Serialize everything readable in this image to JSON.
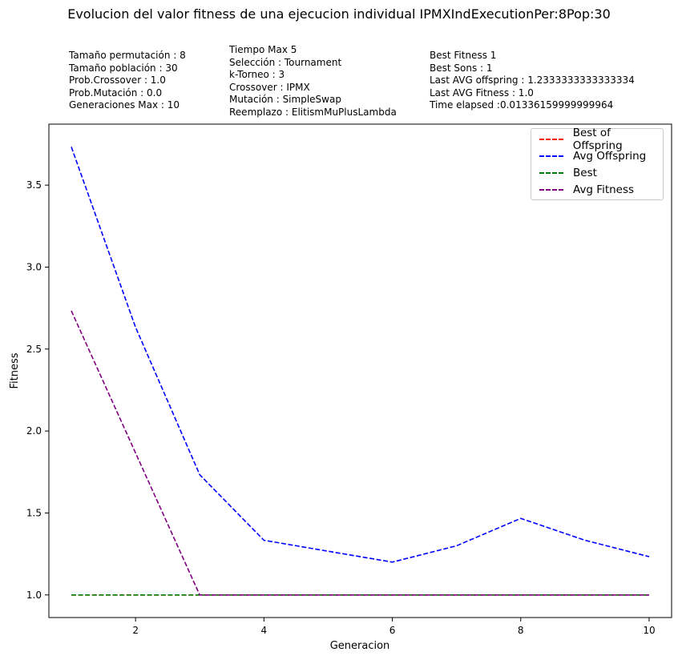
{
  "chart_data": {
    "type": "line",
    "title": "Evolucion del valor fitness de una ejecucion individual IPMXIndExecutionPer:8Pop:30",
    "xlabel": "Generacion",
    "ylabel": "Fitness",
    "xlim": [
      0.65,
      10.35
    ],
    "ylim": [
      0.862,
      3.872
    ],
    "xticks": [
      2,
      4,
      6,
      8,
      10
    ],
    "yticks": [
      1.0,
      1.5,
      2.0,
      2.5,
      3.0,
      3.5
    ],
    "xtick_labels": [
      "2",
      "4",
      "6",
      "8",
      "10"
    ],
    "ytick_labels": [
      "1.0",
      "1.5",
      "2.0",
      "2.5",
      "3.0",
      "3.5"
    ],
    "legend_position": "top-right",
    "grid": false,
    "x": [
      1,
      2,
      3,
      4,
      5,
      6,
      7,
      8,
      9,
      10
    ],
    "series": [
      {
        "name": "Best of Offspring",
        "color": "#ff0000",
        "values": [
          1,
          1,
          1,
          1,
          1,
          1,
          1,
          1,
          1,
          1
        ]
      },
      {
        "name": "Avg Offspring",
        "color": "#0000ff",
        "values": [
          3.7333,
          2.6333,
          1.7333,
          1.3333,
          1.2667,
          1.2,
          1.3,
          1.4667,
          1.3333,
          1.2333
        ]
      },
      {
        "name": "Best",
        "color": "#008000",
        "values": [
          1,
          1,
          1,
          1,
          1,
          1,
          1,
          1,
          1,
          1
        ]
      },
      {
        "name": "Avg Fitness",
        "color": "#800080",
        "values": [
          2.7333,
          1.8667,
          1,
          1,
          1,
          1,
          1,
          1,
          1,
          1
        ]
      }
    ]
  },
  "info": {
    "col1": [
      "Tamaño permutación : 8",
      "Tamaño población : 30",
      "Prob.Crossover : 1.0",
      "Prob.Mutación : 0.0",
      "Generaciones Max : 10"
    ],
    "col2": [
      "Tiempo Max 5",
      "Selección : Tournament",
      "k-Torneo : 3",
      "Crossover : IPMX",
      "Mutación : SimpleSwap",
      "Reemplazo : ElitismMuPlusLambda"
    ],
    "col3": [
      "Best Fitness 1",
      "Best Sons : 1",
      "Last AVG offspring : 1.2333333333333334",
      "Last AVG Fitness : 1.0",
      "Time elapsed :0.01336159999999964"
    ]
  }
}
